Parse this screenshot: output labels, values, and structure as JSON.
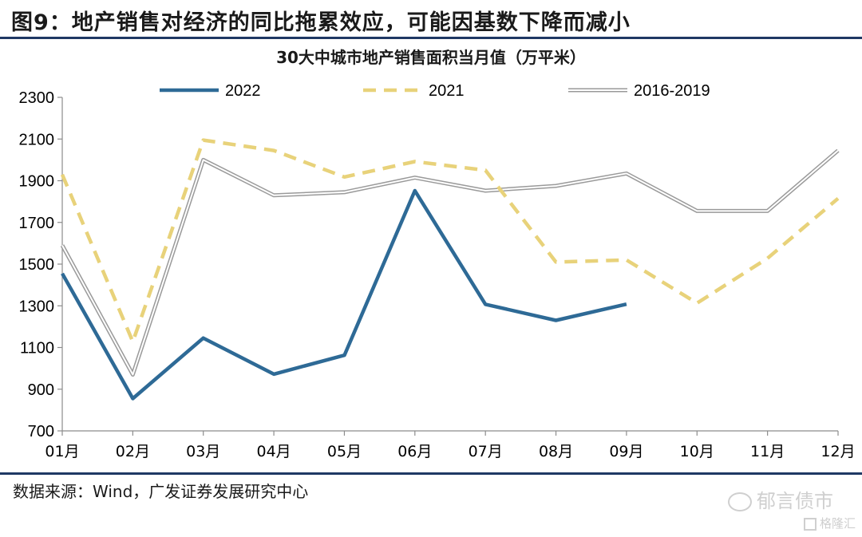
{
  "figure_title": "图9：地产销售对经济的同比拖累效应，可能因基数下降而减小",
  "source": "数据来源：Wind，广发证券发展研究中心",
  "watermark": "郁言债市",
  "watermark2": "格隆汇",
  "chart_data": {
    "type": "line",
    "title": "30大中城市地产销售面积当月值（万平米）",
    "categories": [
      "01月",
      "02月",
      "03月",
      "04月",
      "05月",
      "06月",
      "07月",
      "08月",
      "09月",
      "10月",
      "11月",
      "12月"
    ],
    "ylim": [
      700,
      2300
    ],
    "yticks": [
      700,
      900,
      1100,
      1300,
      1500,
      1700,
      1900,
      2100,
      2300
    ],
    "grid": false,
    "legend": "top",
    "series": [
      {
        "name": "2022",
        "style": "solid",
        "color": "#2e6a96",
        "values": [
          1455,
          855,
          1145,
          972,
          1063,
          1852,
          1307,
          1230,
          1308,
          null,
          null,
          null
        ]
      },
      {
        "name": "2021",
        "style": "dashed",
        "color": "#e8d27a",
        "values": [
          1930,
          1128,
          2095,
          2045,
          1918,
          1992,
          1950,
          1510,
          1520,
          1313,
          1528,
          1815
        ]
      },
      {
        "name": "2016-2019",
        "style": "double",
        "color": "#9a9a9a",
        "values": [
          1590,
          970,
          2000,
          1830,
          1845,
          1915,
          1852,
          1875,
          1935,
          1755,
          1755,
          2045
        ]
      }
    ]
  }
}
